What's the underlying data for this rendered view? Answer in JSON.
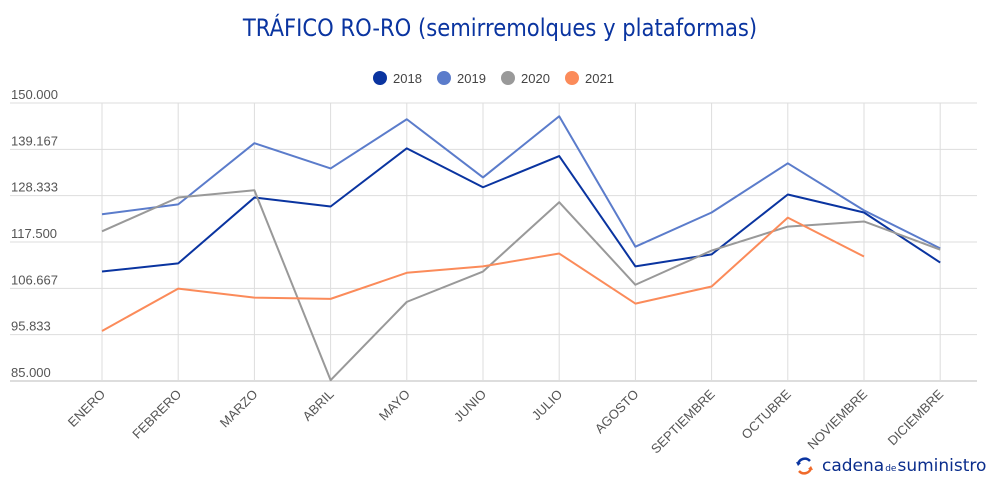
{
  "chart_data": {
    "type": "line",
    "title": "TRÁFICO RO-RO (semirremolques y plataformas)",
    "categories": [
      "ENERO",
      "FEBRERO",
      "MARZO",
      "ABRIL",
      "MAYO",
      "JUNIO",
      "JULIO",
      "AGOSTO",
      "SEPTIEMBRE",
      "OCTUBRE",
      "NOVIEMBRE",
      "DICIEMBRE"
    ],
    "ylim": [
      85000,
      150000
    ],
    "yticks": [
      "85.000",
      "95.833",
      "106.667",
      "117.500",
      "128.333",
      "139.167",
      "150.000"
    ],
    "grid": true,
    "legend_position": "top",
    "series": [
      {
        "name": "2018",
        "color": "#0a34a0",
        "values": [
          110600,
          112500,
          127900,
          125800,
          139400,
          130300,
          137600,
          111800,
          114600,
          128600,
          124400,
          112700
        ]
      },
      {
        "name": "2019",
        "color": "#5b7ccb",
        "values": [
          124000,
          126300,
          140600,
          134700,
          146200,
          132600,
          146900,
          116400,
          124400,
          135900,
          124900,
          116000
        ]
      },
      {
        "name": "2020",
        "color": "#999999",
        "values": [
          120000,
          127900,
          129600,
          85200,
          103500,
          110600,
          126800,
          107500,
          115500,
          121100,
          122300,
          115700
        ]
      },
      {
        "name": "2021",
        "color": "#fb8b5a",
        "values": [
          96700,
          106600,
          104500,
          104200,
          110300,
          111800,
          114800,
          103100,
          107100,
          123200,
          114100,
          null
        ]
      }
    ]
  },
  "logo": {
    "part1": "cadena",
    "part2": "de",
    "part3": "suministro"
  }
}
